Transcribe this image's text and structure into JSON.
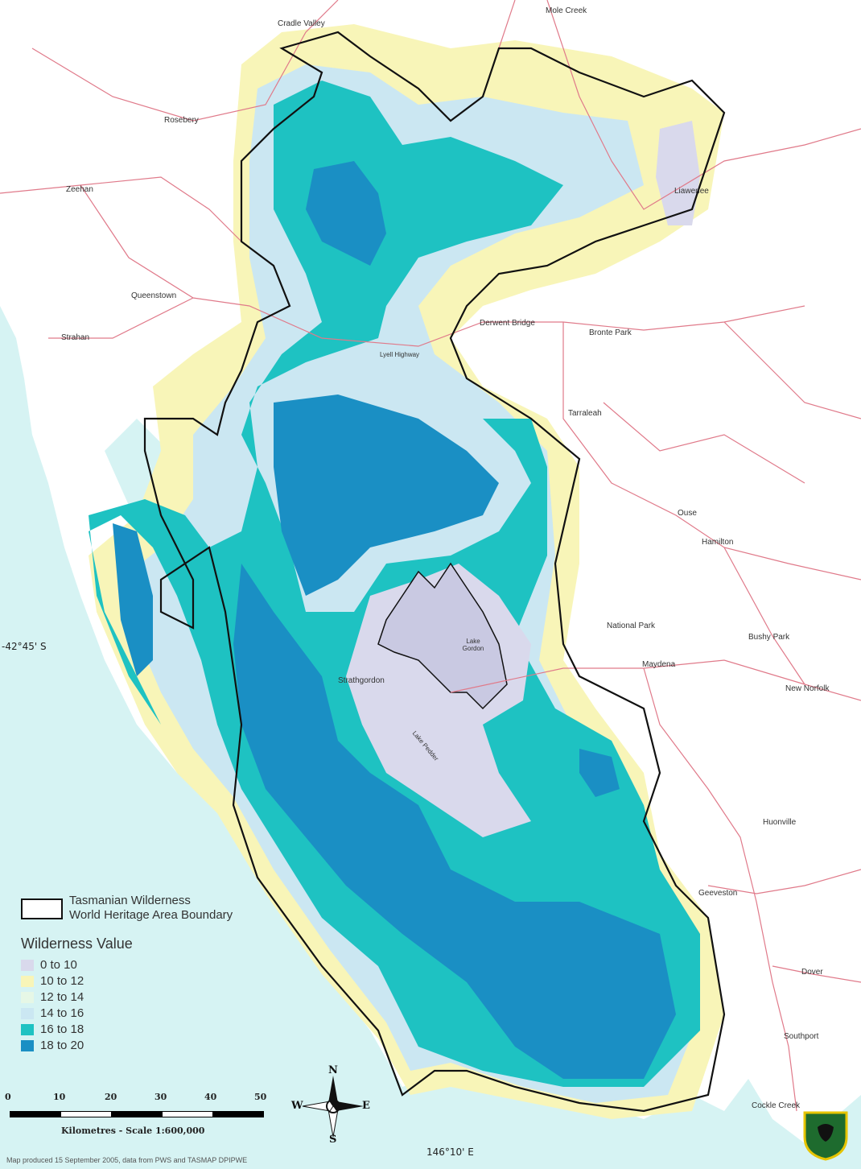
{
  "places": [
    {
      "id": "cradle-valley",
      "name": "Cradle Valley"
    },
    {
      "id": "mole-creek",
      "name": "Mole Creek"
    },
    {
      "id": "rosebery",
      "name": "Rosebery"
    },
    {
      "id": "zeehan",
      "name": "Zeehan"
    },
    {
      "id": "liawenee",
      "name": "Liawenee"
    },
    {
      "id": "queenstown",
      "name": "Queenstown"
    },
    {
      "id": "strahan",
      "name": "Strahan"
    },
    {
      "id": "derwent-bridge",
      "name": "Derwent Bridge"
    },
    {
      "id": "bronte-park",
      "name": "Bronte Park"
    },
    {
      "id": "lyell-highway",
      "name": "Lyell Highway"
    },
    {
      "id": "tarraleah",
      "name": "Tarraleah"
    },
    {
      "id": "ouse",
      "name": "Ouse"
    },
    {
      "id": "hamilton",
      "name": "Hamilton"
    },
    {
      "id": "national-park",
      "name": "National Park"
    },
    {
      "id": "bushy-park",
      "name": "Bushy Park"
    },
    {
      "id": "lake-gordon",
      "name": "Lake Gordon"
    },
    {
      "id": "maydena",
      "name": "Maydena"
    },
    {
      "id": "strathgordon",
      "name": "Strathgordon"
    },
    {
      "id": "new-norfolk",
      "name": "New Norfolk"
    },
    {
      "id": "lake-pedder",
      "name": "Lake Pedder"
    },
    {
      "id": "huonville",
      "name": "Huonville"
    },
    {
      "id": "geeveston",
      "name": "Geeveston"
    },
    {
      "id": "dover",
      "name": "Dover"
    },
    {
      "id": "southport",
      "name": "Southport"
    },
    {
      "id": "cockle-creek",
      "name": "Cockle Creek"
    }
  ],
  "coordinates": {
    "lat_label": "-42°45' S",
    "lon_label": "146°10' E"
  },
  "legend": {
    "boundary_line1": "Tasmanian Wilderness",
    "boundary_line2": "World Heritage Area Boundary",
    "title": "Wilderness Value",
    "classes": [
      {
        "label": "0 to 10",
        "color": "#d9d9ec"
      },
      {
        "label": "10 to 12",
        "color": "#f8f5b8"
      },
      {
        "label": "12 to 14",
        "color": "#e6f7e6"
      },
      {
        "label": "14 to 16",
        "color": "#cbe7f2"
      },
      {
        "label": "16 to 18",
        "color": "#1ec2c2"
      },
      {
        "label": "18 to 20",
        "color": "#1a8fc4"
      }
    ]
  },
  "scale": {
    "ticks": [
      "0",
      "10",
      "20",
      "30",
      "40",
      "50"
    ],
    "caption": "Kilometres - Scale 1:600,000"
  },
  "compass": {
    "n": "N",
    "s": "S",
    "e": "E",
    "w": "W"
  },
  "credit": "Map produced 15 September 2005, data from PWS and TASMAP DPIPWE",
  "colors": {
    "sea": "#d6f3f3",
    "land": "#ffffff",
    "road": "#e07a8a",
    "boundary": "#111111"
  }
}
